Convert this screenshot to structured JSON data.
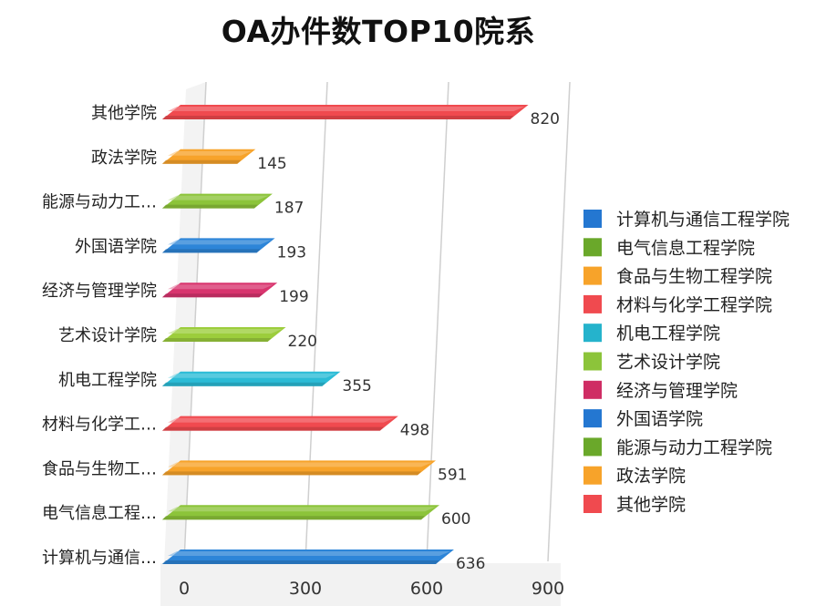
{
  "chart_data": {
    "type": "bar",
    "orientation": "horizontal",
    "title": "OA办件数TOP10院系",
    "categories": [
      "其他学院",
      "政法学院",
      "能源与动力工…",
      "外国语学院",
      "经济与管理学院",
      "艺术设计学院",
      "机电工程学院",
      "材料与化学工…",
      "食品与生物工…",
      "电气信息工程…",
      "计算机与通信…"
    ],
    "values": [
      820,
      145,
      187,
      193,
      199,
      220,
      355,
      498,
      591,
      600,
      636
    ],
    "bar_colors": [
      "#f04a4f",
      "#f7a32a",
      "#8cc43a",
      "#2d85d8",
      "#d8356e",
      "#9ccd3c",
      "#2bbcd6",
      "#f04a4f",
      "#f7a32a",
      "#8cc43a",
      "#2d85d8"
    ],
    "xticks": [
      0,
      300,
      600,
      900
    ],
    "xlim": [
      0,
      900
    ],
    "grid": true,
    "legend_position": "right",
    "legend": [
      {
        "label": "计算机与通信工程学院",
        "color": "#2477d1"
      },
      {
        "label": "电气信息工程学院",
        "color": "#6aa82a"
      },
      {
        "label": "食品与生物工程学院",
        "color": "#f7a32a"
      },
      {
        "label": "材料与化学工程学院",
        "color": "#f04a4f"
      },
      {
        "label": "机电工程学院",
        "color": "#25b3cc"
      },
      {
        "label": "艺术设计学院",
        "color": "#8cc43a"
      },
      {
        "label": "经济与管理学院",
        "color": "#cf2d64"
      },
      {
        "label": "外国语学院",
        "color": "#2477d1"
      },
      {
        "label": "能源与动力工程学院",
        "color": "#6aa82a"
      },
      {
        "label": "政法学院",
        "color": "#f7a32a"
      },
      {
        "label": "其他学院",
        "color": "#f04a4f"
      }
    ]
  }
}
